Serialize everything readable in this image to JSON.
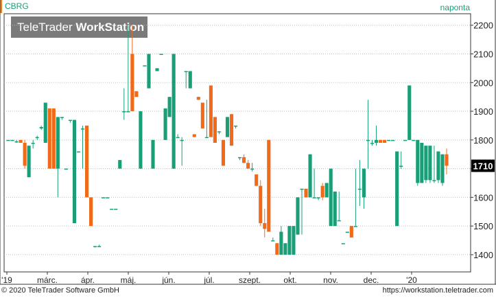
{
  "ticker": "CBRG",
  "period": "naponta",
  "logo": {
    "text_light": "TeleTrader",
    "text_bold": "WorkStation"
  },
  "footer": {
    "copyright": "© 2020 TeleTrader Software GmbH",
    "url": "https://workstation.teletrader.com"
  },
  "colors": {
    "up": "#1a9e78",
    "down": "#f06a1a",
    "grid": "#bbbbbb",
    "price_tag": "#000000"
  },
  "chart_data": {
    "type": "candlestick",
    "ylim": [
      1340,
      2240
    ],
    "y_ticks": [
      1400,
      1500,
      1600,
      1700,
      1800,
      1900,
      2000,
      2100,
      2200
    ],
    "x_tick_labels": [
      "'19",
      "márc.",
      "ápr.",
      "máj.",
      "jún.",
      "júl.",
      "szept.",
      "okt.",
      "nov.",
      "dec.",
      "'20"
    ],
    "last_price": "1710",
    "candles": [
      {
        "o": 1800,
        "h": 1800,
        "l": 1800,
        "c": 1800
      },
      {
        "o": 1800,
        "h": 1800,
        "l": 1800,
        "c": 1800
      },
      {
        "o": 1795,
        "h": 1800,
        "l": 1790,
        "c": 1795
      },
      {
        "o": 1800,
        "h": 1800,
        "l": 1790,
        "c": 1790
      },
      {
        "o": 1790,
        "h": 1800,
        "l": 1700,
        "c": 1710
      },
      {
        "o": 1670,
        "h": 1780,
        "l": 1670,
        "c": 1780
      },
      {
        "o": 1790,
        "h": 1800,
        "l": 1770,
        "c": 1790
      },
      {
        "o": 1810,
        "h": 1815,
        "l": 1800,
        "c": 1810
      },
      {
        "o": 1840,
        "h": 1850,
        "l": 1835,
        "c": 1845
      },
      {
        "o": 1790,
        "h": 1930,
        "l": 1790,
        "c": 1930
      },
      {
        "o": 1910,
        "h": 1910,
        "l": 1700,
        "c": 1700
      },
      {
        "o": 1910,
        "h": 1910,
        "l": 1700,
        "c": 1700
      },
      {
        "o": 1700,
        "h": 1880,
        "l": 1600,
        "c": 1880
      },
      {
        "o": 1880,
        "h": 1880,
        "l": 1870,
        "c": 1880
      },
      {
        "o": 1700,
        "h": 1700,
        "l": 1700,
        "c": 1700
      },
      {
        "o": 1870,
        "h": 1870,
        "l": 1860,
        "c": 1870
      },
      {
        "o": 1510,
        "h": 1870,
        "l": 1510,
        "c": 1870
      },
      {
        "o": 1760,
        "h": 1760,
        "l": 1760,
        "c": 1760
      },
      {
        "o": 1840,
        "h": 1850,
        "l": 1700,
        "c": 1840
      },
      {
        "o": 1850,
        "h": 1850,
        "l": 1600,
        "c": 1600
      },
      {
        "o": 1600,
        "h": 1600,
        "l": 1500,
        "c": 1500
      },
      {
        "o": 1430,
        "h": 1430,
        "l": 1425,
        "c": 1430
      },
      {
        "o": 1430,
        "h": 1435,
        "l": 1430,
        "c": 1430
      },
      {
        "o": 1600,
        "h": 1600,
        "l": 1600,
        "c": 1600
      },
      {
        "o": 1600,
        "h": 1600,
        "l": 1600,
        "c": 1600
      },
      {
        "o": 1560,
        "h": 1560,
        "l": 1560,
        "c": 1560
      },
      {
        "o": 1560,
        "h": 1560,
        "l": 1560,
        "c": 1560
      },
      {
        "o": 1700,
        "h": 1730,
        "l": 1700,
        "c": 1730
      },
      {
        "o": 1900,
        "h": 1980,
        "l": 1870,
        "c": 1900
      },
      {
        "o": 1900,
        "h": 2200,
        "l": 1900,
        "c": 1900
      },
      {
        "o": 2100,
        "h": 2200,
        "l": 1900,
        "c": 1900
      },
      {
        "o": 1970,
        "h": 1970,
        "l": 1950,
        "c": 1950
      },
      {
        "o": 1700,
        "h": 1900,
        "l": 1700,
        "c": 1900
      },
      {
        "o": 2060,
        "h": 2060,
        "l": 2060,
        "c": 2060
      },
      {
        "o": 1980,
        "h": 2100,
        "l": 1980,
        "c": 2100
      },
      {
        "o": 1700,
        "h": 1800,
        "l": 1700,
        "c": 1800
      },
      {
        "o": 2040,
        "h": 2050,
        "l": 2040,
        "c": 2050
      },
      {
        "o": 2100,
        "h": 2100,
        "l": 2100,
        "c": 2100
      },
      {
        "o": 1800,
        "h": 1910,
        "l": 1800,
        "c": 1910
      },
      {
        "o": 1880,
        "h": 1950,
        "l": 1880,
        "c": 1950
      },
      {
        "o": 1700,
        "h": 2100,
        "l": 1700,
        "c": 2100
      },
      {
        "o": 1810,
        "h": 1820,
        "l": 1810,
        "c": 1810
      },
      {
        "o": 1800,
        "h": 1810,
        "l": 1710,
        "c": 1800
      },
      {
        "o": 2040,
        "h": 2040,
        "l": 1980,
        "c": 2040
      },
      {
        "o": 1980,
        "h": 2040,
        "l": 1980,
        "c": 2040
      },
      {
        "o": 1820,
        "h": 1820,
        "l": 1810,
        "c": 1810
      },
      {
        "o": 1950,
        "h": 1950,
        "l": 1940,
        "c": 1940
      },
      {
        "o": 1930,
        "h": 1930,
        "l": 1840,
        "c": 1840
      },
      {
        "o": 1810,
        "h": 1940,
        "l": 1810,
        "c": 1810
      },
      {
        "o": 1990,
        "h": 1990,
        "l": 1810,
        "c": 1810
      },
      {
        "o": 1880,
        "h": 1880,
        "l": 1790,
        "c": 1790
      },
      {
        "o": 1830,
        "h": 1830,
        "l": 1820,
        "c": 1830
      },
      {
        "o": 1800,
        "h": 1800,
        "l": 1710,
        "c": 1710
      },
      {
        "o": 1810,
        "h": 1880,
        "l": 1810,
        "c": 1880
      },
      {
        "o": 1890,
        "h": 1890,
        "l": 1780,
        "c": 1780
      },
      {
        "o": 1850,
        "h": 1850,
        "l": 1840,
        "c": 1850
      },
      {
        "o": 1740,
        "h": 1740,
        "l": 1730,
        "c": 1740
      },
      {
        "o": 1740,
        "h": 1750,
        "l": 1720,
        "c": 1720
      },
      {
        "o": 1720,
        "h": 1730,
        "l": 1700,
        "c": 1700
      },
      {
        "o": 1700,
        "h": 1720,
        "l": 1690,
        "c": 1700
      },
      {
        "o": 1680,
        "h": 1680,
        "l": 1640,
        "c": 1640
      },
      {
        "o": 1640,
        "h": 1660,
        "l": 1500,
        "c": 1510
      },
      {
        "o": 1510,
        "h": 1560,
        "l": 1460,
        "c": 1490
      },
      {
        "o": 1800,
        "h": 1800,
        "l": 1480,
        "c": 1480
      },
      {
        "o": 1450,
        "h": 1460,
        "l": 1450,
        "c": 1450
      },
      {
        "o": 1440,
        "h": 1440,
        "l": 1400,
        "c": 1400
      },
      {
        "o": 1400,
        "h": 1500,
        "l": 1400,
        "c": 1480
      },
      {
        "o": 1400,
        "h": 1440,
        "l": 1400,
        "c": 1440
      },
      {
        "o": 1400,
        "h": 1500,
        "l": 1400,
        "c": 1500
      },
      {
        "o": 1400,
        "h": 1500,
        "l": 1400,
        "c": 1500
      },
      {
        "o": 1470,
        "h": 1600,
        "l": 1470,
        "c": 1600
      },
      {
        "o": 1630,
        "h": 1630,
        "l": 1470,
        "c": 1630
      },
      {
        "o": 1630,
        "h": 1630,
        "l": 1600,
        "c": 1600
      },
      {
        "o": 1600,
        "h": 1750,
        "l": 1600,
        "c": 1750
      },
      {
        "o": 1600,
        "h": 1700,
        "l": 1600,
        "c": 1600
      },
      {
        "o": 1600,
        "h": 1600,
        "l": 1590,
        "c": 1600
      },
      {
        "o": 1640,
        "h": 1650,
        "l": 1590,
        "c": 1600
      },
      {
        "o": 1600,
        "h": 1650,
        "l": 1600,
        "c": 1650
      },
      {
        "o": 1500,
        "h": 1700,
        "l": 1500,
        "c": 1700
      },
      {
        "o": 1500,
        "h": 1620,
        "l": 1500,
        "c": 1620
      },
      {
        "o": 1520,
        "h": 1620,
        "l": 1520,
        "c": 1520
      },
      {
        "o": 1440,
        "h": 1440,
        "l": 1440,
        "c": 1440
      },
      {
        "o": 1480,
        "h": 1480,
        "l": 1480,
        "c": 1480
      },
      {
        "o": 1500,
        "h": 1500,
        "l": 1460,
        "c": 1460
      },
      {
        "o": 1500,
        "h": 1700,
        "l": 1500,
        "c": 1500
      },
      {
        "o": 1630,
        "h": 1730,
        "l": 1570,
        "c": 1630
      },
      {
        "o": 1600,
        "h": 1700,
        "l": 1560,
        "c": 1700
      },
      {
        "o": 1800,
        "h": 1940,
        "l": 1700,
        "c": 1800
      },
      {
        "o": 1790,
        "h": 1800,
        "l": 1780,
        "c": 1790
      },
      {
        "o": 1790,
        "h": 1850,
        "l": 1780,
        "c": 1800
      },
      {
        "o": 1800,
        "h": 1800,
        "l": 1790,
        "c": 1790
      },
      {
        "o": 1800,
        "h": 1800,
        "l": 1790,
        "c": 1790
      },
      {
        "o": 1800,
        "h": 1800,
        "l": 1800,
        "c": 1800
      },
      {
        "o": 1800,
        "h": 1800,
        "l": 1800,
        "c": 1800
      },
      {
        "o": 1500,
        "h": 1760,
        "l": 1500,
        "c": 1760
      },
      {
        "o": 1710,
        "h": 1760,
        "l": 1700,
        "c": 1710
      },
      {
        "o": 1800,
        "h": 1800,
        "l": 1800,
        "c": 1800
      },
      {
        "o": 1800,
        "h": 1990,
        "l": 1800,
        "c": 1990
      },
      {
        "o": 1800,
        "h": 1800,
        "l": 1800,
        "c": 1800
      },
      {
        "o": 1650,
        "h": 1800,
        "l": 1640,
        "c": 1800
      },
      {
        "o": 1650,
        "h": 1790,
        "l": 1650,
        "c": 1790
      },
      {
        "o": 1660,
        "h": 1780,
        "l": 1650,
        "c": 1780
      },
      {
        "o": 1660,
        "h": 1780,
        "l": 1650,
        "c": 1780
      },
      {
        "o": 1660,
        "h": 1780,
        "l": 1650,
        "c": 1660
      },
      {
        "o": 1660,
        "h": 1760,
        "l": 1650,
        "c": 1760
      },
      {
        "o": 1650,
        "h": 1750,
        "l": 1640,
        "c": 1750
      },
      {
        "o": 1750,
        "h": 1770,
        "l": 1680,
        "c": 1710
      }
    ]
  }
}
